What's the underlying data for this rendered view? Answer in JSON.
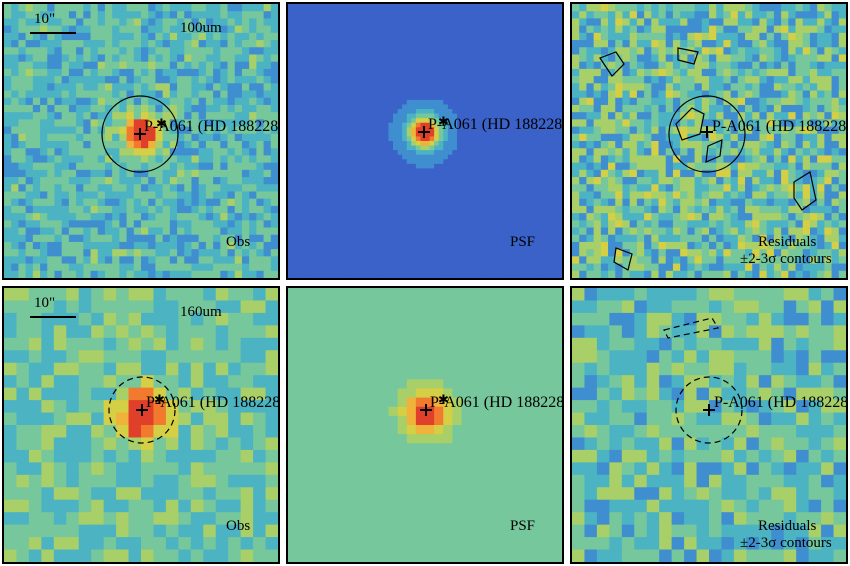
{
  "rows": [
    {
      "scale_label": "10\"",
      "band_label": "100um",
      "source_label": "P-A061 (HD 188228)",
      "obs_label": "Obs",
      "psf_label": "PSF",
      "residual_label_1": "Residuals",
      "residual_label_2": "±2-3σ contours",
      "circle_style": "solid"
    },
    {
      "scale_label": "10\"",
      "band_label": "160um",
      "source_label": "P-A061 (HD 188228)",
      "obs_label": "Obs",
      "psf_label": "PSF",
      "residual_label_1": "Residuals",
      "residual_label_2": "±2-3σ contours",
      "circle_style": "dashed"
    }
  ],
  "colormap": [
    "#2a1a6e",
    "#3a3aa0",
    "#3a62c8",
    "#3f8fd0",
    "#4cb3c2",
    "#76c79b",
    "#a8cf68",
    "#d5cf45",
    "#f0b23a",
    "#f27a2f",
    "#e0402a"
  ]
}
